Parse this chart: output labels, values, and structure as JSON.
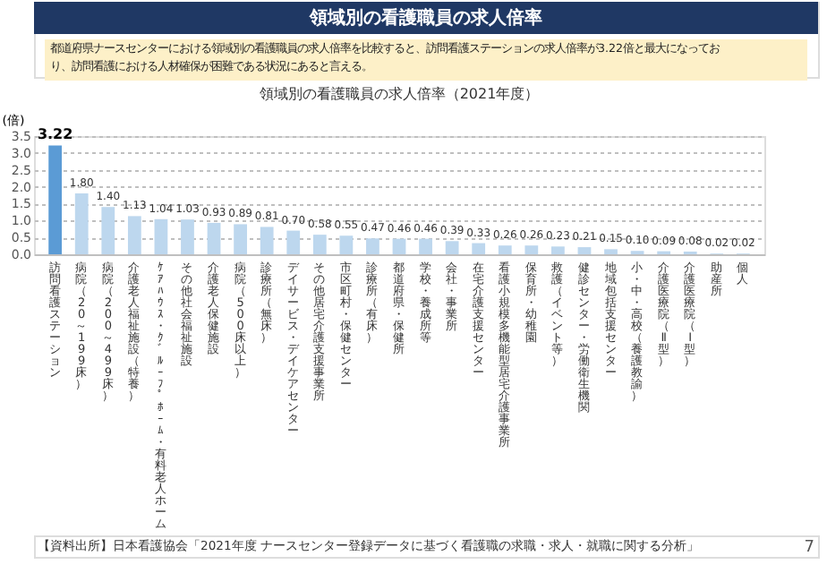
{
  "chart_data": {
    "type": "bar",
    "title": "領域別の看護職員の求人倍率（2021年度）",
    "ylabel": "(倍)",
    "categories": [
      "訪問看護ステーション",
      "病院（20～199床）",
      "病院（200～499床）",
      "介護老人福祉施設（特養）",
      "ｹｱﾊｳｽ・ｸﾞﾙｰﾌﾟﾎｰﾑ・有料老人ホーム",
      "その他社会福祉施設",
      "介護老人保健施設",
      "病院（500床以上）",
      "診療所（無床）",
      "デイサービス・デイケアセンター",
      "その他居宅介護支援事業所",
      "市区町村・保健センター",
      "診療所（有床）",
      "都道府県・保健所",
      "学校・養成所等",
      "会社・事業所",
      "在宅介護支援センター",
      "看護小規模多機能型居宅介護事業所",
      "保育所・幼稚園",
      "救護（イベント等）",
      "健診センター・労働衛生機関",
      "地域包括支援センター",
      "小・中・高校（養護教諭）",
      "介護医療院（Ⅱ型）",
      "介護医療院（Ⅰ型）",
      "助産所",
      "個人"
    ],
    "values": [
      3.22,
      1.8,
      1.4,
      1.13,
      1.04,
      1.03,
      0.93,
      0.89,
      0.81,
      0.7,
      0.58,
      0.55,
      0.47,
      0.46,
      0.46,
      0.39,
      0.33,
      0.26,
      0.26,
      0.23,
      0.21,
      0.15,
      0.1,
      0.09,
      0.08,
      0.02,
      0.02
    ],
    "colors": [
      "#5b9bd5",
      "#bdd7ee",
      "#bdd7ee",
      "#bdd7ee",
      "#bdd7ee",
      "#bdd7ee",
      "#bdd7ee",
      "#bdd7ee",
      "#bdd7ee",
      "#bdd7ee",
      "#bdd7ee",
      "#bdd7ee",
      "#bdd7ee",
      "#bdd7ee",
      "#bdd7ee",
      "#bdd7ee",
      "#bdd7ee",
      "#bdd7ee",
      "#bdd7ee",
      "#bdd7ee",
      "#bdd7ee",
      "#bdd7ee",
      "#bdd7ee",
      "#bdd7ee",
      "#bdd7ee",
      "#bdd7ee",
      "#bdd7ee"
    ],
    "ylim": [
      0,
      3.5
    ],
    "yticks": [
      {
        "value": 0,
        "label": "0.0"
      },
      0.5,
      {
        "value": 1,
        "label": "1.0"
      },
      1.5,
      {
        "value": 2,
        "label": "2.0"
      },
      2.5,
      {
        "value": 3,
        "label": "3.0"
      },
      3.5
    ],
    "grid": "y",
    "value_labels": [
      "3.22",
      "1.80",
      "1.40",
      "1.13",
      "1.04",
      "1.03",
      "0.93",
      "0.89",
      "0.81",
      "0.70",
      "0.58",
      "0.55",
      "0.47",
      "0.46",
      "0.46",
      "0.39",
      "0.33",
      "0.26",
      "0.26",
      "0.23",
      "0.21",
      "0.15",
      "0.10",
      "0.09",
      "0.08",
      "0.02",
      "0.02"
    ],
    "annotations": [
      "領域別の看護職員の求人倍率",
      "都道府県ナースセンターにおける領域別の看護職員の求人倍率を比較すると、訪問看護ステーションの求人倍率が3.22倍と最大になっており、訪問看護における人材確保が困難である状況にあると言える。",
      "【資料出所】日本看護協会「2021年度 ナースセンター登録データに基づく看護職の求職・求人・就職に関する分析」",
      "7"
    ]
  }
}
